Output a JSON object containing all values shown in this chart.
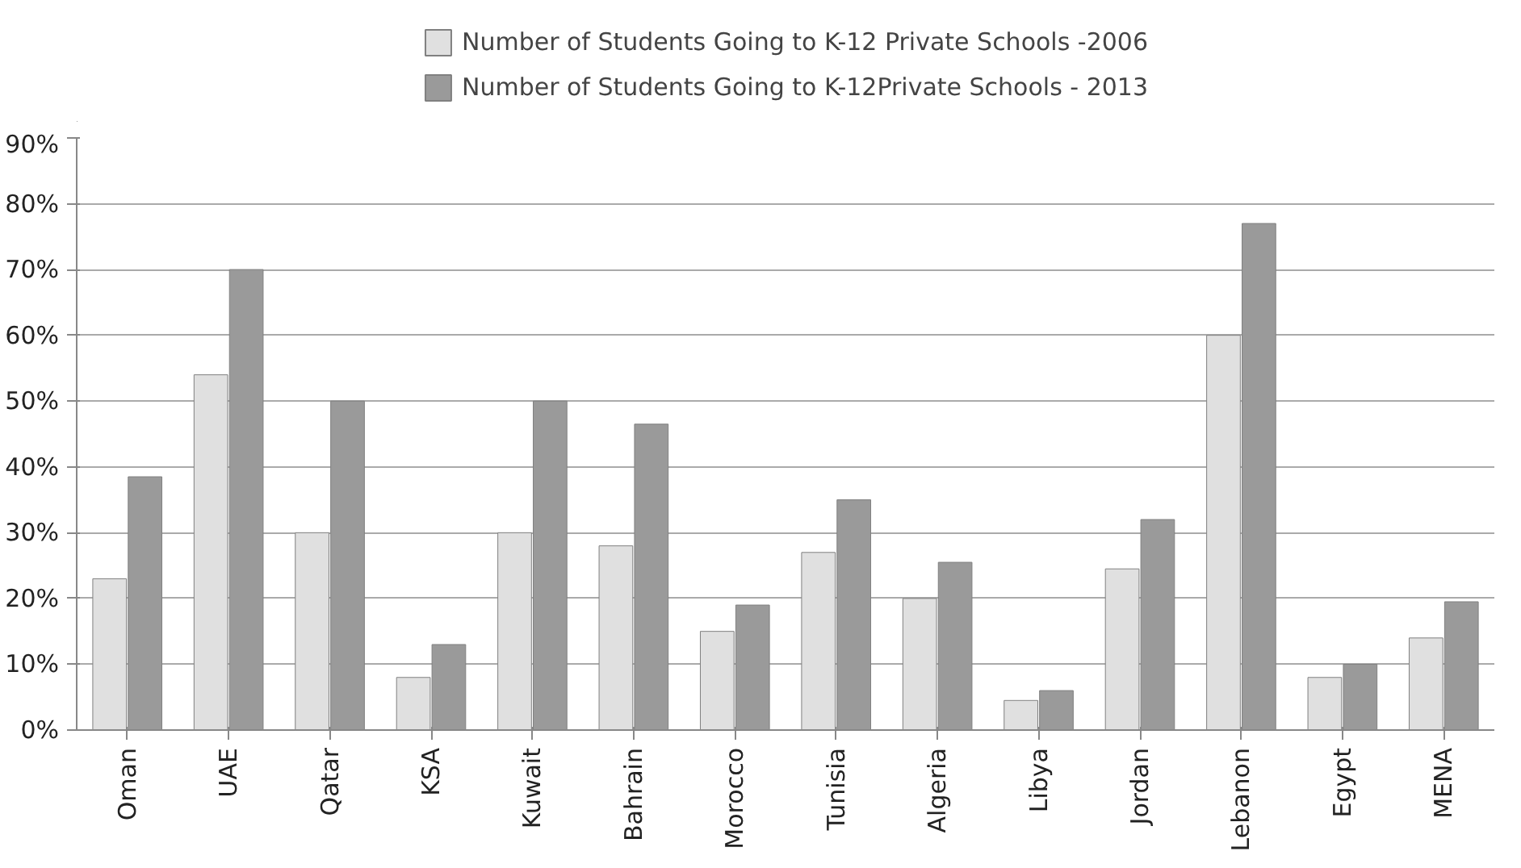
{
  "chart_data": {
    "type": "bar",
    "categories": [
      "Oman",
      "UAE",
      "Qatar",
      "KSA",
      "Kuwait",
      "Bahrain",
      "Morocco",
      "Tunisia",
      "Algeria",
      "Libya",
      "Jordan",
      "Lebanon",
      "Egypt",
      "MENA"
    ],
    "series": [
      {
        "name": "Number of Students Going to K-12 Private Schools -2006",
        "color": "#e0e0e0",
        "values": [
          23,
          54,
          30,
          8,
          30,
          28,
          15,
          27,
          20,
          4.5,
          24.5,
          60,
          8,
          14
        ]
      },
      {
        "name": "Number of Students Going to K-12Private Schools - 2013",
        "color": "#9a9a9a",
        "values": [
          38.5,
          70,
          50,
          13,
          50,
          46.5,
          19,
          35,
          25.5,
          6,
          32,
          77,
          10,
          19.5
        ]
      }
    ],
    "ylim": [
      0,
      90
    ],
    "yticks": [
      {
        "value": 0,
        "label": "0%"
      },
      {
        "value": 10,
        "label": "10%"
      },
      {
        "value": 20,
        "label": "20%"
      },
      {
        "value": 30,
        "label": "30%"
      },
      {
        "value": 40,
        "label": "40%"
      },
      {
        "value": 50,
        "label": "50%"
      },
      {
        "value": 60,
        "label": "60%"
      },
      {
        "value": 70,
        "label": "70%"
      },
      {
        "value": 80,
        "label": "80%"
      },
      {
        "value": 90,
        "label": "90%"
      }
    ],
    "grid": "y",
    "legend": "top"
  }
}
